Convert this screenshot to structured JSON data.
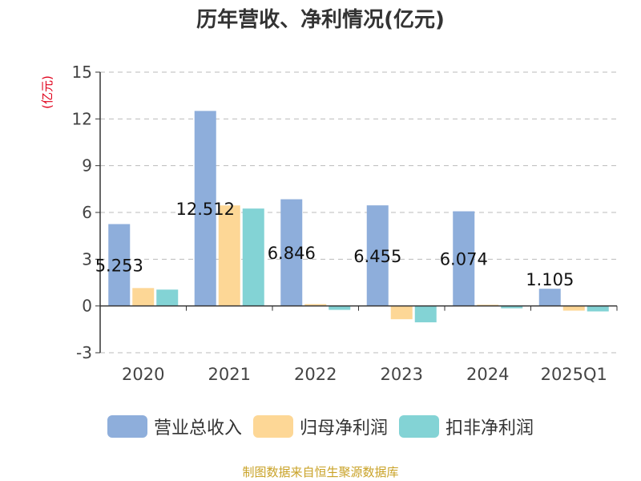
{
  "title": "历年营收、净利情况(亿元)",
  "source": "制图数据来自恒生聚源数据库",
  "colors": {
    "revenue": "#8eaedb",
    "net_profit": "#fdd796",
    "deducted_net_profit": "#83d3d5",
    "unit_label": "#e0001b",
    "axis": "#333333",
    "grid": "#bbbbbb"
  },
  "chart_data": {
    "type": "bar",
    "title": "历年营收、净利情况(亿元)",
    "ylabel": "(亿元)",
    "xlabel": "",
    "categories": [
      "2020",
      "2021",
      "2022",
      "2023",
      "2024",
      "2025Q1"
    ],
    "ylim": [
      -3,
      15
    ],
    "yticks": [
      "15",
      "12",
      "9",
      "6",
      "3",
      "0",
      "-3"
    ],
    "ytick_values": [
      15,
      12,
      9,
      6,
      3,
      0,
      -3
    ],
    "grid": true,
    "legend_position": "bottom",
    "series": [
      {
        "name": "营业总收入",
        "color_key": "revenue",
        "values": [
          5.253,
          12.512,
          6.846,
          6.455,
          6.074,
          1.105
        ],
        "labels": [
          "5.253",
          "12.512",
          "6.846",
          "6.455",
          "6.074",
          "1.105"
        ]
      },
      {
        "name": "归母净利润",
        "color_key": "net_profit",
        "values": [
          1.15,
          6.45,
          0.12,
          -0.85,
          0.08,
          -0.3
        ]
      },
      {
        "name": "扣非净利润",
        "color_key": "deducted_net_profit",
        "values": [
          1.05,
          6.25,
          -0.25,
          -1.05,
          -0.15,
          -0.35
        ]
      }
    ]
  }
}
